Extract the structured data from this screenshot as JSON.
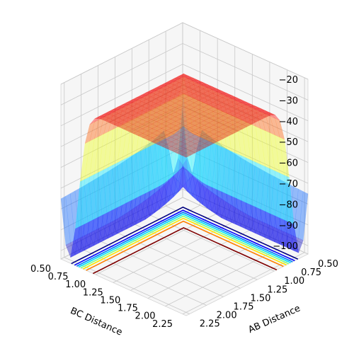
{
  "chart_data": {
    "type": "surface",
    "title": "",
    "xlabel": "AB Distance",
    "ylabel": "BC Distance",
    "zlabel": "",
    "x_ticks": [
      "0.50",
      "0.75",
      "1.00",
      "1.25",
      "1.50",
      "1.75",
      "2.00",
      "2.25"
    ],
    "y_ticks": [
      "0.50",
      "0.75",
      "1.00",
      "1.25",
      "1.50",
      "1.75",
      "2.00",
      "2.25"
    ],
    "z_ticks": [
      "−20",
      "−30",
      "−40",
      "−50",
      "−60",
      "−70",
      "−80",
      "−90",
      "−100"
    ],
    "xlim": [
      0.5,
      2.3
    ],
    "ylim": [
      0.5,
      2.3
    ],
    "zlim": [
      -104,
      -20
    ],
    "surface": {
      "colormap": "jet",
      "alpha": 0.4,
      "min_energy": -101.9,
      "plateau_energy": -28
    },
    "contour_levels": [
      -100,
      -90,
      -80,
      -70,
      -60,
      -50,
      -40,
      -30
    ],
    "contour_colors": [
      "#00007f",
      "#0000ff",
      "#007fff",
      "#00e5ff",
      "#7fff7f",
      "#ffe500",
      "#ff7f00",
      "#7f0000"
    ],
    "grid": true,
    "view": {
      "elevation_deg": 20,
      "azimuth_deg": 45
    }
  }
}
